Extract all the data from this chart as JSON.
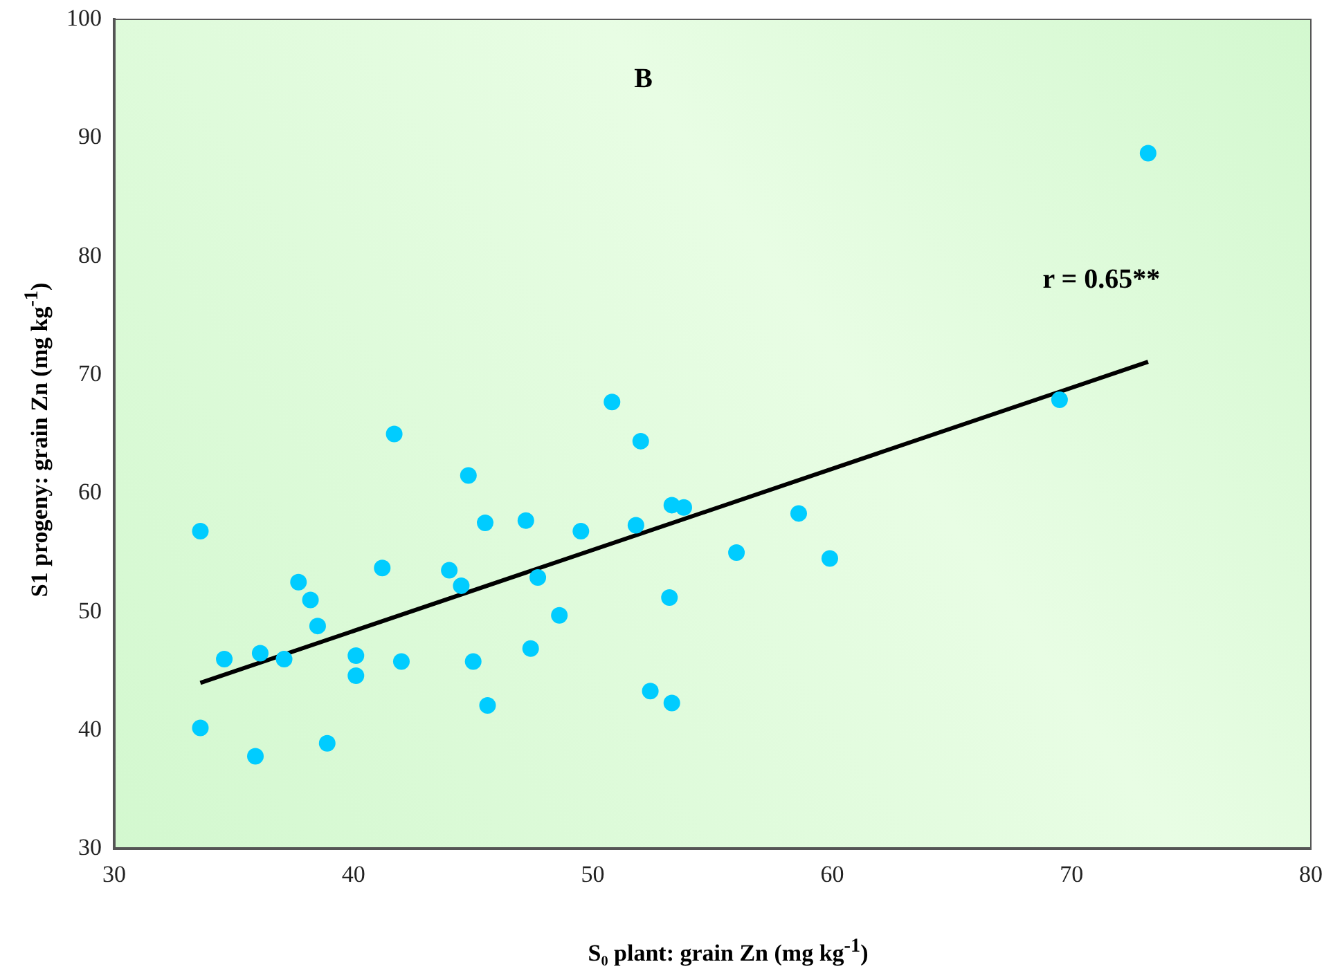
{
  "chart_data": {
    "type": "scatter",
    "title": "B",
    "xlabel": "S₀ plant: grain Zn (mg kg$^{-1}$)",
    "ylabel": "S1 progeny: grain Zn (mg kg$^{-1}$)",
    "xlim": [
      30,
      80
    ],
    "xticks": [
      30,
      40,
      50,
      60,
      70,
      80
    ],
    "ylim": [
      30,
      100
    ],
    "yticks": [
      30,
      40,
      50,
      60,
      70,
      80,
      90,
      100
    ],
    "grid": false,
    "legend": false,
    "marker": "circle",
    "series": [
      {
        "color": "#00ccff",
        "x": [
          33.6,
          33.6,
          34.6,
          35.9,
          36.1,
          37.1,
          37.7,
          38.2,
          38.5,
          38.9,
          40.1,
          40.1,
          41.2,
          41.7,
          42.0,
          44.0,
          44.5,
          44.8,
          45.0,
          45.5,
          45.6,
          47.2,
          47.4,
          47.7,
          48.6,
          49.5,
          50.8,
          51.8,
          52.0,
          52.4,
          53.2,
          53.3,
          53.3,
          53.8,
          56.0,
          58.6,
          59.9,
          69.5,
          73.2
        ],
        "values": [
          56.8,
          40.2,
          46.0,
          37.8,
          46.5,
          46.0,
          52.5,
          51.0,
          48.8,
          38.9,
          46.3,
          44.6,
          53.7,
          65.0,
          45.8,
          53.5,
          52.2,
          61.5,
          45.8,
          57.5,
          42.1,
          57.7,
          46.9,
          52.9,
          49.7,
          56.8,
          67.7,
          57.3,
          64.4,
          43.3,
          51.2,
          59.0,
          42.3,
          58.8,
          55.0,
          58.3,
          54.5,
          67.9,
          88.7
        ]
      },
      {
        "type": "line",
        "color": "#000000",
        "x": [
          33.6,
          73.2
        ],
        "values": [
          44.0,
          71.1
        ],
        "marker": "none",
        "line_style": "solid"
      }
    ],
    "annotations": [
      "r = 0.65**"
    ]
  }
}
